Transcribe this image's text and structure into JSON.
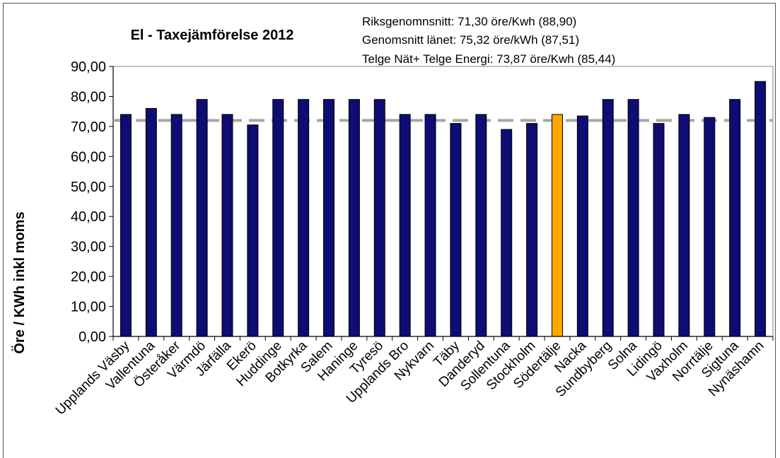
{
  "chart_data": {
    "type": "bar",
    "title": "El - Taxejämförelse 2012",
    "annotations": [
      "Riksgenomnsnitt: 71,30 öre/Kwh (88,90)",
      "Genomsnitt länet:  75,32 öre/kWh (87,51)",
      "Telge Nät+ Telge Energi: 73,87 öre/Kwh (85,44)"
    ],
    "xlabel": "",
    "ylabel": "Öre / KWh inkl moms",
    "ylim": [
      0,
      90
    ],
    "yticks": [
      "0,00",
      "10,00",
      "20,00",
      "30,00",
      "40,00",
      "50,00",
      "60,00",
      "70,00",
      "80,00",
      "90,00"
    ],
    "grid": false,
    "reference_line": {
      "value": 72,
      "style": "dashed",
      "color": "#a6a6a6"
    },
    "categories": [
      "Upplands Väsby",
      "Vallentuna",
      "Österåker",
      "Värmdö",
      "Järfälla",
      "Ekerö",
      "Huddinge",
      "Botkyrka",
      "Salem",
      "Haninge",
      "Tyresö",
      "Upplands Bro",
      "Nykvarn",
      "Täby",
      "Danderyd",
      "Sollentuna",
      "Stockholm",
      "Södertälje",
      "Nacka",
      "Sundbyberg",
      "Solna",
      "Lidingö",
      "Vaxholm",
      "Norrtälje",
      "Sigtuna",
      "Nynäshamn"
    ],
    "values": [
      74,
      76,
      74,
      79,
      74,
      70.5,
      79,
      79,
      79,
      79,
      79,
      74,
      74,
      71,
      74,
      69,
      71,
      74,
      73.5,
      79,
      79,
      71,
      74,
      73,
      79,
      85
    ],
    "highlight_category": "Södertälje",
    "colors": {
      "bar": "#0d0d73",
      "highlight": "#ffa500",
      "bar_stroke": "#000000",
      "axis": "#000000"
    }
  }
}
